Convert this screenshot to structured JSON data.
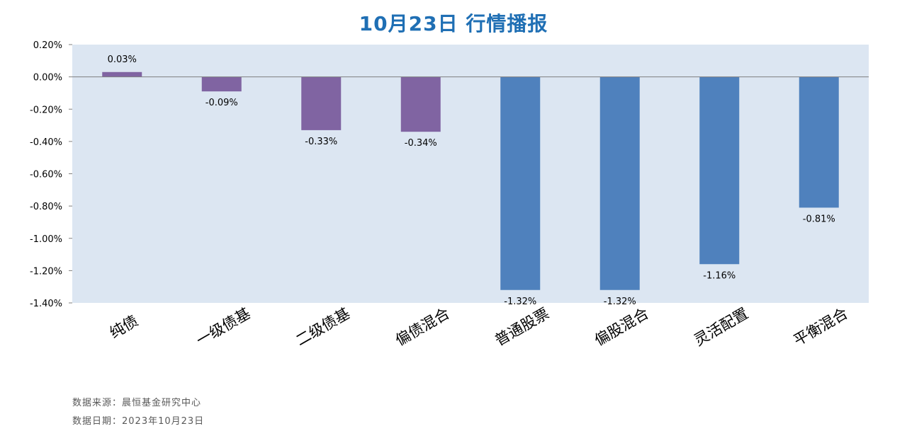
{
  "title": "10月23日  行情播报",
  "colors": {
    "plot_bg": "#dce6f2",
    "bond_bar": "#8064a2",
    "equity_bar": "#4f81bd",
    "title": "#1f6fb4"
  },
  "chart_data": {
    "type": "bar",
    "title": "10月23日  行情播报",
    "xlabel": "",
    "ylabel": "",
    "categories": [
      "纯债",
      "一级债基",
      "二级债基",
      "偏债混合",
      "普通股票",
      "偏股混合",
      "灵活配置",
      "平衡混合"
    ],
    "values": [
      0.03,
      -0.09,
      -0.33,
      -0.34,
      -1.32,
      -1.32,
      -1.16,
      -0.81
    ],
    "data_labels": [
      "0.03%",
      "-0.09%",
      "-0.33%",
      "-0.34%",
      "-1.32%",
      "-1.32%",
      "-1.16%",
      "-0.81%"
    ],
    "bar_colors": [
      "#8064a2",
      "#8064a2",
      "#8064a2",
      "#8064a2",
      "#4f81bd",
      "#4f81bd",
      "#4f81bd",
      "#4f81bd"
    ],
    "ylim": [
      -1.4,
      0.2
    ],
    "yticks": [
      0.2,
      0.0,
      -0.2,
      -0.4,
      -0.6,
      -0.8,
      -1.0,
      -1.2,
      -1.4
    ],
    "ytick_labels": [
      "0.20%",
      "0.00%",
      "-0.20%",
      "-0.40%",
      "-0.60%",
      "-0.80%",
      "-1.00%",
      "-1.20%",
      "-1.40%"
    ],
    "grid": false,
    "legend": "none"
  },
  "footer": {
    "source": "数据来源：晨恒基金研究中心",
    "date": "数据日期：2023年10月23日"
  }
}
